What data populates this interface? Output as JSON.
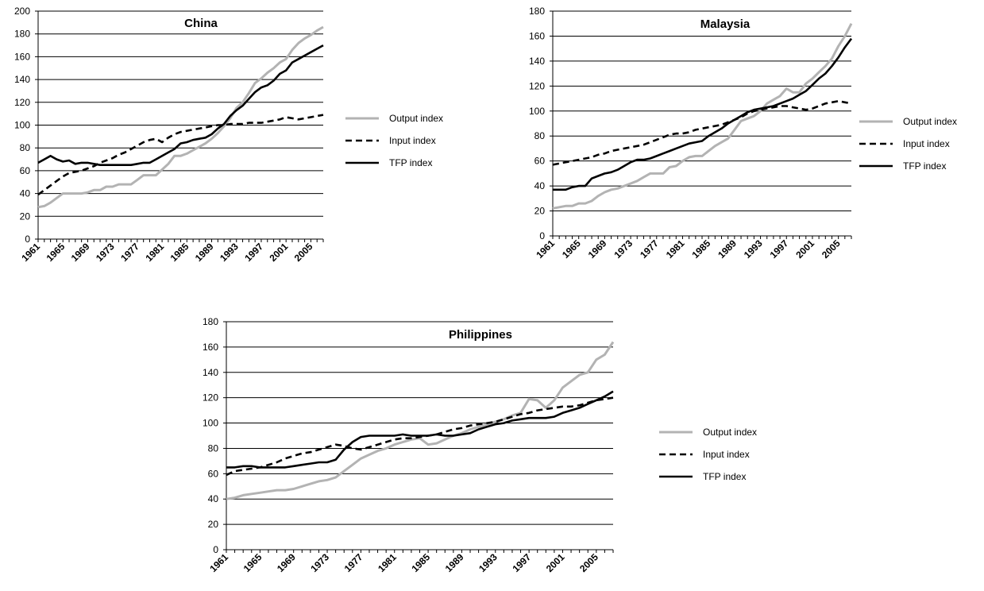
{
  "colors": {
    "output": "#b3b3b3",
    "input": "#000000",
    "tfp": "#000000",
    "grid": "#000000",
    "background": "#ffffff"
  },
  "chart_data": [
    {
      "type": "line",
      "title": "China",
      "xlabel": "",
      "ylabel": "",
      "ylim": [
        0,
        200
      ],
      "yticks": [
        0,
        20,
        40,
        60,
        80,
        100,
        120,
        140,
        160,
        180,
        200
      ],
      "xlim": [
        1961,
        2007
      ],
      "xticks": [
        1961,
        1965,
        1969,
        1973,
        1977,
        1981,
        1985,
        1989,
        1993,
        1997,
        2001,
        2005
      ],
      "grid": true,
      "legend_position": "right",
      "x": [
        1961,
        1962,
        1963,
        1964,
        1965,
        1966,
        1967,
        1968,
        1969,
        1970,
        1971,
        1972,
        1973,
        1974,
        1975,
        1976,
        1977,
        1978,
        1979,
        1980,
        1981,
        1982,
        1983,
        1984,
        1985,
        1986,
        1987,
        1988,
        1989,
        1990,
        1991,
        1992,
        1993,
        1994,
        1995,
        1996,
        1997,
        1998,
        1999,
        2000,
        2001,
        2002,
        2003,
        2004,
        2005,
        2006,
        2007
      ],
      "series": [
        {
          "name": "Output index",
          "style": "solid-gray",
          "values": [
            28,
            29,
            32,
            36,
            40,
            40,
            40,
            40,
            41,
            43,
            43,
            46,
            46,
            48,
            48,
            48,
            52,
            56,
            56,
            56,
            61,
            66,
            73,
            73,
            75,
            78,
            81,
            84,
            88,
            93,
            99,
            106,
            115,
            120,
            128,
            137,
            141,
            146,
            150,
            155,
            158,
            166,
            172,
            176,
            179,
            183,
            186
          ]
        },
        {
          "name": "Input index",
          "style": "dashed",
          "values": [
            39,
            43,
            47,
            51,
            55,
            58,
            59,
            60,
            62,
            64,
            67,
            69,
            71,
            74,
            76,
            79,
            82,
            85,
            87,
            88,
            85,
            89,
            92,
            94,
            95,
            96,
            97,
            98,
            99,
            100,
            100,
            101,
            101,
            101,
            102,
            102,
            102,
            103,
            104,
            105,
            107,
            106,
            105,
            106,
            107,
            108,
            109
          ]
        },
        {
          "name": "TFP index",
          "style": "solid-black",
          "values": [
            67,
            70,
            73,
            70,
            68,
            69,
            66,
            67,
            67,
            66,
            65,
            65,
            65,
            65,
            65,
            65,
            66,
            67,
            67,
            70,
            73,
            76,
            79,
            84,
            85,
            87,
            88,
            89,
            92,
            97,
            101,
            108,
            113,
            117,
            123,
            129,
            133,
            135,
            139,
            145,
            148,
            155,
            158,
            161,
            164,
            167,
            170
          ]
        }
      ]
    },
    {
      "type": "line",
      "title": "Malaysia",
      "xlabel": "",
      "ylabel": "",
      "ylim": [
        0,
        180
      ],
      "yticks": [
        0,
        20,
        40,
        60,
        80,
        100,
        120,
        140,
        160,
        180
      ],
      "xlim": [
        1961,
        2007
      ],
      "xticks": [
        1961,
        1965,
        1969,
        1973,
        1977,
        1981,
        1985,
        1989,
        1993,
        1997,
        2001,
        2005
      ],
      "grid": true,
      "legend_position": "right",
      "x": [
        1961,
        1962,
        1963,
        1964,
        1965,
        1966,
        1967,
        1968,
        1969,
        1970,
        1971,
        1972,
        1973,
        1974,
        1975,
        1976,
        1977,
        1978,
        1979,
        1980,
        1981,
        1982,
        1983,
        1984,
        1985,
        1986,
        1987,
        1988,
        1989,
        1990,
        1991,
        1992,
        1993,
        1994,
        1995,
        1996,
        1997,
        1998,
        1999,
        2000,
        2001,
        2002,
        2003,
        2004,
        2005,
        2006,
        2007
      ],
      "series": [
        {
          "name": "Output index",
          "style": "solid-gray",
          "values": [
            22,
            23,
            24,
            24,
            26,
            26,
            28,
            32,
            35,
            37,
            38,
            40,
            42,
            44,
            47,
            50,
            50,
            50,
            55,
            56,
            60,
            63,
            64,
            64,
            68,
            72,
            75,
            78,
            85,
            92,
            94,
            96,
            100,
            106,
            109,
            112,
            118,
            115,
            115,
            122,
            126,
            131,
            136,
            142,
            152,
            160,
            170
          ]
        },
        {
          "name": "Input index",
          "style": "dashed",
          "values": [
            57,
            58,
            59,
            60,
            61,
            62,
            63,
            65,
            66,
            68,
            69,
            70,
            71,
            72,
            73,
            75,
            77,
            79,
            81,
            82,
            82,
            83,
            85,
            86,
            87,
            88,
            89,
            91,
            93,
            95,
            98,
            100,
            101,
            102,
            103,
            104,
            104,
            103,
            102,
            101,
            102,
            104,
            106,
            107,
            108,
            107,
            106
          ]
        },
        {
          "name": "TFP index",
          "style": "solid-black",
          "values": [
            37,
            37,
            37,
            39,
            40,
            40,
            46,
            48,
            50,
            51,
            53,
            56,
            59,
            61,
            61,
            62,
            64,
            66,
            68,
            70,
            72,
            74,
            75,
            76,
            80,
            83,
            86,
            90,
            93,
            96,
            99,
            101,
            102,
            103,
            104,
            106,
            108,
            110,
            113,
            116,
            121,
            126,
            130,
            136,
            143,
            151,
            158
          ]
        }
      ]
    },
    {
      "type": "line",
      "title": "Philippines",
      "xlabel": "",
      "ylabel": "",
      "ylim": [
        0,
        180
      ],
      "yticks": [
        0,
        20,
        40,
        60,
        80,
        100,
        120,
        140,
        160,
        180
      ],
      "xlim": [
        1961,
        2007
      ],
      "xticks": [
        1961,
        1965,
        1969,
        1973,
        1977,
        1981,
        1985,
        1989,
        1993,
        1997,
        2001,
        2005
      ],
      "grid": true,
      "legend_position": "right",
      "x": [
        1961,
        1962,
        1963,
        1964,
        1965,
        1966,
        1967,
        1968,
        1969,
        1970,
        1971,
        1972,
        1973,
        1974,
        1975,
        1976,
        1977,
        1978,
        1979,
        1980,
        1981,
        1982,
        1983,
        1984,
        1985,
        1986,
        1987,
        1988,
        1989,
        1990,
        1991,
        1992,
        1993,
        1994,
        1995,
        1996,
        1997,
        1998,
        1999,
        2000,
        2001,
        2002,
        2003,
        2004,
        2005,
        2006,
        2007
      ],
      "series": [
        {
          "name": "Output index",
          "style": "solid-gray",
          "values": [
            40,
            41,
            43,
            44,
            45,
            46,
            47,
            47,
            48,
            50,
            52,
            54,
            55,
            57,
            62,
            67,
            72,
            75,
            78,
            80,
            83,
            85,
            87,
            88,
            83,
            84,
            87,
            90,
            92,
            95,
            97,
            99,
            101,
            103,
            106,
            108,
            119,
            118,
            112,
            118,
            128,
            133,
            138,
            140,
            150,
            154,
            164
          ]
        },
        {
          "name": "Input index",
          "style": "dashed",
          "values": [
            59,
            62,
            63,
            64,
            65,
            67,
            69,
            72,
            74,
            76,
            77,
            79,
            81,
            83,
            82,
            80,
            79,
            81,
            83,
            85,
            87,
            88,
            88,
            89,
            90,
            91,
            93,
            95,
            96,
            98,
            99,
            100,
            101,
            103,
            105,
            107,
            108,
            110,
            111,
            112,
            113,
            113,
            114,
            116,
            118,
            119,
            120
          ]
        },
        {
          "name": "TFP index",
          "style": "solid-black",
          "values": [
            65,
            65,
            66,
            66,
            65,
            65,
            65,
            65,
            66,
            67,
            68,
            69,
            69,
            71,
            79,
            85,
            89,
            90,
            90,
            90,
            90,
            91,
            90,
            90,
            90,
            91,
            90,
            90,
            91,
            92,
            95,
            97,
            99,
            100,
            102,
            103,
            104,
            104,
            104,
            105,
            108,
            110,
            112,
            115,
            118,
            121,
            125
          ]
        }
      ]
    }
  ]
}
